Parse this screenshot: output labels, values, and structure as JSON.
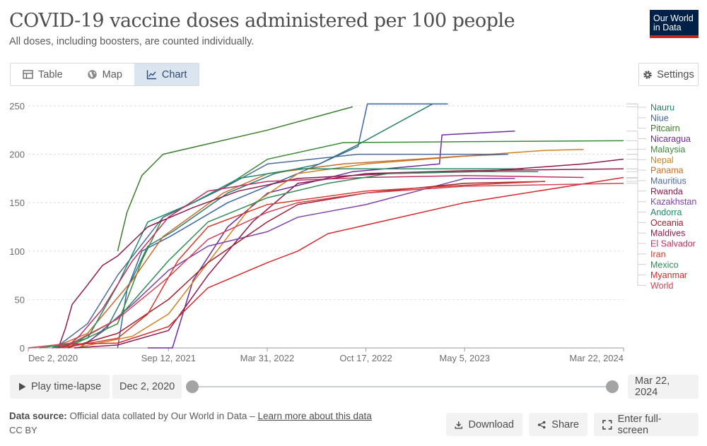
{
  "header": {
    "title": "COVID-19 vaccine doses administered per 100 people",
    "subtitle": "All doses, including boosters, are counted individually.",
    "logo_line1": "Our World",
    "logo_line2": "in Data"
  },
  "tabs": [
    {
      "label": "Table",
      "icon": "table-icon",
      "active": false
    },
    {
      "label": "Map",
      "icon": "globe-icon",
      "active": false
    },
    {
      "label": "Chart",
      "icon": "line-chart-icon",
      "active": true
    }
  ],
  "settings_label": "Settings",
  "chart_data": {
    "type": "line",
    "title": "COVID-19 vaccine doses administered per 100 people",
    "xlabel": "",
    "ylabel": "",
    "x_domain": [
      "2020-12-02",
      "2024-03-22"
    ],
    "x_ticks": [
      {
        "label": "Dec 2, 2020",
        "date": "2020-12-02"
      },
      {
        "label": "Sep 12, 2021",
        "date": "2021-09-12"
      },
      {
        "label": "Mar 31, 2022",
        "date": "2022-03-31"
      },
      {
        "label": "Oct 17, 2022",
        "date": "2022-10-17"
      },
      {
        "label": "May 5, 2023",
        "date": "2023-05-05"
      },
      {
        "label": "Mar 22, 2024",
        "date": "2024-03-22"
      }
    ],
    "ylim": [
      0,
      250
    ],
    "y_ticks": [
      0,
      50,
      100,
      150,
      200,
      250
    ],
    "grid": true,
    "legend": "right",
    "series": [
      {
        "name": "Nauru",
        "color": "#2b7f6e",
        "points": [
          [
            "2021-03-15",
            0
          ],
          [
            "2021-05-10",
            20
          ],
          [
            "2021-06-20",
            60
          ],
          [
            "2021-08-01",
            105
          ],
          [
            "2021-09-20",
            120
          ],
          [
            "2022-01-10",
            160
          ],
          [
            "2022-04-15",
            180
          ],
          [
            "2022-07-15",
            190
          ],
          [
            "2022-10-01",
            210
          ],
          [
            "2023-03-01",
            252
          ]
        ]
      },
      {
        "name": "Niue",
        "color": "#3a65a8",
        "points": [
          [
            "2021-06-01",
            0
          ],
          [
            "2021-06-20",
            60
          ],
          [
            "2021-07-20",
            100
          ],
          [
            "2021-09-15",
            115
          ],
          [
            "2022-01-10",
            150
          ],
          [
            "2022-06-01",
            180
          ],
          [
            "2022-10-01",
            208
          ],
          [
            "2022-10-20",
            252
          ],
          [
            "2023-04-01",
            252
          ]
        ]
      },
      {
        "name": "Pitcairn",
        "color": "#3c7d2c",
        "points": [
          [
            "2021-06-01",
            100
          ],
          [
            "2021-06-20",
            140
          ],
          [
            "2021-07-20",
            178
          ],
          [
            "2021-09-01",
            200
          ],
          [
            "2022-04-01",
            225
          ],
          [
            "2022-09-20",
            249
          ]
        ]
      },
      {
        "name": "Nicaragua",
        "color": "#6e2c9c",
        "points": [
          [
            "2021-08-01",
            0
          ],
          [
            "2021-09-20",
            0
          ],
          [
            "2021-11-01",
            70
          ],
          [
            "2022-01-10",
            125
          ],
          [
            "2022-04-01",
            160
          ],
          [
            "2022-09-20",
            182
          ],
          [
            "2023-03-15",
            190
          ],
          [
            "2023-03-20",
            220
          ],
          [
            "2023-08-15",
            224
          ]
        ]
      },
      {
        "name": "Malaysia",
        "color": "#3b8a3a",
        "points": [
          [
            "2021-03-01",
            3
          ],
          [
            "2021-06-01",
            25
          ],
          [
            "2021-07-20",
            90
          ],
          [
            "2021-09-01",
            135
          ],
          [
            "2022-01-01",
            165
          ],
          [
            "2022-04-01",
            195
          ],
          [
            "2022-09-01",
            212
          ],
          [
            "2023-05-01",
            213
          ],
          [
            "2024-03-22",
            214
          ]
        ]
      },
      {
        "name": "Nepal",
        "color": "#d0801e",
        "points": [
          [
            "2021-03-07",
            0
          ],
          [
            "2021-07-01",
            12
          ],
          [
            "2021-09-12",
            35
          ],
          [
            "2021-12-01",
            88
          ],
          [
            "2022-03-01",
            148
          ],
          [
            "2022-06-01",
            180
          ],
          [
            "2022-10-17",
            190
          ],
          [
            "2023-05-05",
            198
          ],
          [
            "2023-10-15",
            204
          ],
          [
            "2024-01-01",
            205
          ]
        ]
      },
      {
        "name": "Panama",
        "color": "#c56c2a",
        "points": [
          [
            "2021-01-20",
            0
          ],
          [
            "2021-04-01",
            15
          ],
          [
            "2021-07-01",
            70
          ],
          [
            "2021-09-01",
            115
          ],
          [
            "2022-01-01",
            160
          ],
          [
            "2022-04-01",
            180
          ],
          [
            "2022-09-01",
            190
          ],
          [
            "2023-05-01",
            198
          ],
          [
            "2023-08-01",
            200
          ]
        ]
      },
      {
        "name": "Mauritius",
        "color": "#4c6a9c",
        "points": [
          [
            "2021-01-26",
            0
          ],
          [
            "2021-04-01",
            25
          ],
          [
            "2021-06-01",
            75
          ],
          [
            "2021-09-01",
            135
          ],
          [
            "2022-01-01",
            165
          ],
          [
            "2022-04-01",
            190
          ],
          [
            "2022-10-01",
            200
          ],
          [
            "2023-05-01",
            200
          ],
          [
            "2023-08-01",
            200
          ]
        ]
      },
      {
        "name": "Rwanda",
        "color": "#8c1a4c",
        "points": [
          [
            "2021-03-05",
            0
          ],
          [
            "2021-06-01",
            3
          ],
          [
            "2021-09-12",
            18
          ],
          [
            "2021-12-01",
            75
          ],
          [
            "2022-03-01",
            130
          ],
          [
            "2022-06-01",
            170
          ],
          [
            "2022-10-17",
            180
          ],
          [
            "2023-05-05",
            183
          ],
          [
            "2024-03-22",
            185
          ]
        ]
      },
      {
        "name": "Kazakhstan",
        "color": "#7e42a8",
        "points": [
          [
            "2021-02-01",
            0
          ],
          [
            "2021-04-01",
            5
          ],
          [
            "2021-07-01",
            45
          ],
          [
            "2021-09-12",
            80
          ],
          [
            "2021-12-01",
            105
          ],
          [
            "2022-03-31",
            120
          ],
          [
            "2022-06-01",
            135
          ],
          [
            "2022-10-17",
            148
          ],
          [
            "2023-05-05",
            175
          ],
          [
            "2023-08-15",
            175
          ]
        ]
      },
      {
        "name": "Andorra",
        "color": "#1d8a64",
        "points": [
          [
            "2021-01-20",
            0
          ],
          [
            "2021-04-01",
            10
          ],
          [
            "2021-06-01",
            65
          ],
          [
            "2021-08-01",
            130
          ],
          [
            "2021-11-01",
            150
          ],
          [
            "2022-02-01",
            175
          ],
          [
            "2022-06-01",
            185
          ],
          [
            "2023-01-01",
            185
          ],
          [
            "2023-09-01",
            185
          ]
        ]
      },
      {
        "name": "Oceania",
        "color": "#a0202e",
        "points": [
          [
            "2021-02-20",
            0
          ],
          [
            "2021-06-01",
            15
          ],
          [
            "2021-09-12",
            50
          ],
          [
            "2021-12-01",
            88
          ],
          [
            "2022-03-31",
            130
          ],
          [
            "2022-06-01",
            148
          ],
          [
            "2022-10-17",
            160
          ],
          [
            "2023-05-05",
            170
          ],
          [
            "2023-10-15",
            172
          ]
        ]
      },
      {
        "name": "Maldives",
        "color": "#8c1a4c",
        "points": [
          [
            "2021-02-01",
            0
          ],
          [
            "2021-02-15",
            20
          ],
          [
            "2021-03-01",
            45
          ],
          [
            "2021-04-01",
            65
          ],
          [
            "2021-05-01",
            85
          ],
          [
            "2021-06-01",
            95
          ],
          [
            "2021-08-01",
            125
          ],
          [
            "2021-11-01",
            145
          ],
          [
            "2022-02-01",
            162
          ],
          [
            "2022-06-01",
            175
          ],
          [
            "2022-12-01",
            180
          ],
          [
            "2023-06-01",
            182
          ],
          [
            "2024-01-01",
            190
          ],
          [
            "2024-03-22",
            195
          ]
        ]
      },
      {
        "name": "El Salvador",
        "color": "#c03060",
        "points": [
          [
            "2021-02-15",
            0
          ],
          [
            "2021-03-15",
            12
          ],
          [
            "2021-05-01",
            40
          ],
          [
            "2021-07-01",
            90
          ],
          [
            "2021-09-12",
            135
          ],
          [
            "2021-12-01",
            162
          ],
          [
            "2022-04-01",
            172
          ],
          [
            "2022-10-17",
            176
          ],
          [
            "2023-05-05",
            178
          ],
          [
            "2024-01-01",
            176
          ]
        ]
      },
      {
        "name": "Iran",
        "color": "#d43b2c",
        "points": [
          [
            "2021-02-09",
            0
          ],
          [
            "2021-06-01",
            10
          ],
          [
            "2021-08-01",
            35
          ],
          [
            "2021-10-01",
            90
          ],
          [
            "2021-12-01",
            125
          ],
          [
            "2022-03-31",
            148
          ],
          [
            "2022-10-17",
            162
          ],
          [
            "2023-05-05",
            168
          ],
          [
            "2023-10-15",
            172
          ]
        ]
      },
      {
        "name": "Mexico",
        "color": "#2e8b57",
        "points": [
          [
            "2020-12-24",
            0
          ],
          [
            "2021-03-01",
            4
          ],
          [
            "2021-06-01",
            30
          ],
          [
            "2021-09-12",
            90
          ],
          [
            "2021-12-01",
            130
          ],
          [
            "2022-03-31",
            155
          ],
          [
            "2022-08-01",
            170
          ],
          [
            "2022-12-01",
            180
          ],
          [
            "2023-05-05",
            182
          ],
          [
            "2023-10-01",
            182
          ]
        ]
      },
      {
        "name": "Myanmar",
        "color": "#d6282b",
        "points": [
          [
            "2021-01-27",
            0
          ],
          [
            "2021-03-01",
            4
          ],
          [
            "2021-06-01",
            5
          ],
          [
            "2021-09-12",
            22
          ],
          [
            "2021-12-01",
            62
          ],
          [
            "2022-03-31",
            88
          ],
          [
            "2022-06-01",
            100
          ],
          [
            "2022-08-01",
            118
          ],
          [
            "2023-05-05",
            150
          ],
          [
            "2024-03-22",
            176
          ]
        ]
      },
      {
        "name": "World",
        "color": "#ce4455",
        "points": [
          [
            "2020-12-02",
            0
          ],
          [
            "2021-03-01",
            5
          ],
          [
            "2021-06-01",
            30
          ],
          [
            "2021-09-12",
            73
          ],
          [
            "2021-12-01",
            112
          ],
          [
            "2022-03-31",
            140
          ],
          [
            "2022-06-01",
            150
          ],
          [
            "2022-10-17",
            160
          ],
          [
            "2023-05-05",
            167
          ],
          [
            "2024-03-22",
            170
          ]
        ]
      }
    ]
  },
  "controls": {
    "play_label": "Play time-lapse",
    "start_date": "Dec 2, 2020",
    "end_date": "Mar 22, 2024",
    "start_fraction": 0,
    "end_fraction": 1
  },
  "footer": {
    "source_label": "Data source:",
    "source_text": "Official data collated by Our World in Data –",
    "learn_more": "Learn more about this data",
    "license": "CC BY",
    "download_label": "Download",
    "share_label": "Share",
    "fullscreen_label": "Enter full-screen"
  }
}
